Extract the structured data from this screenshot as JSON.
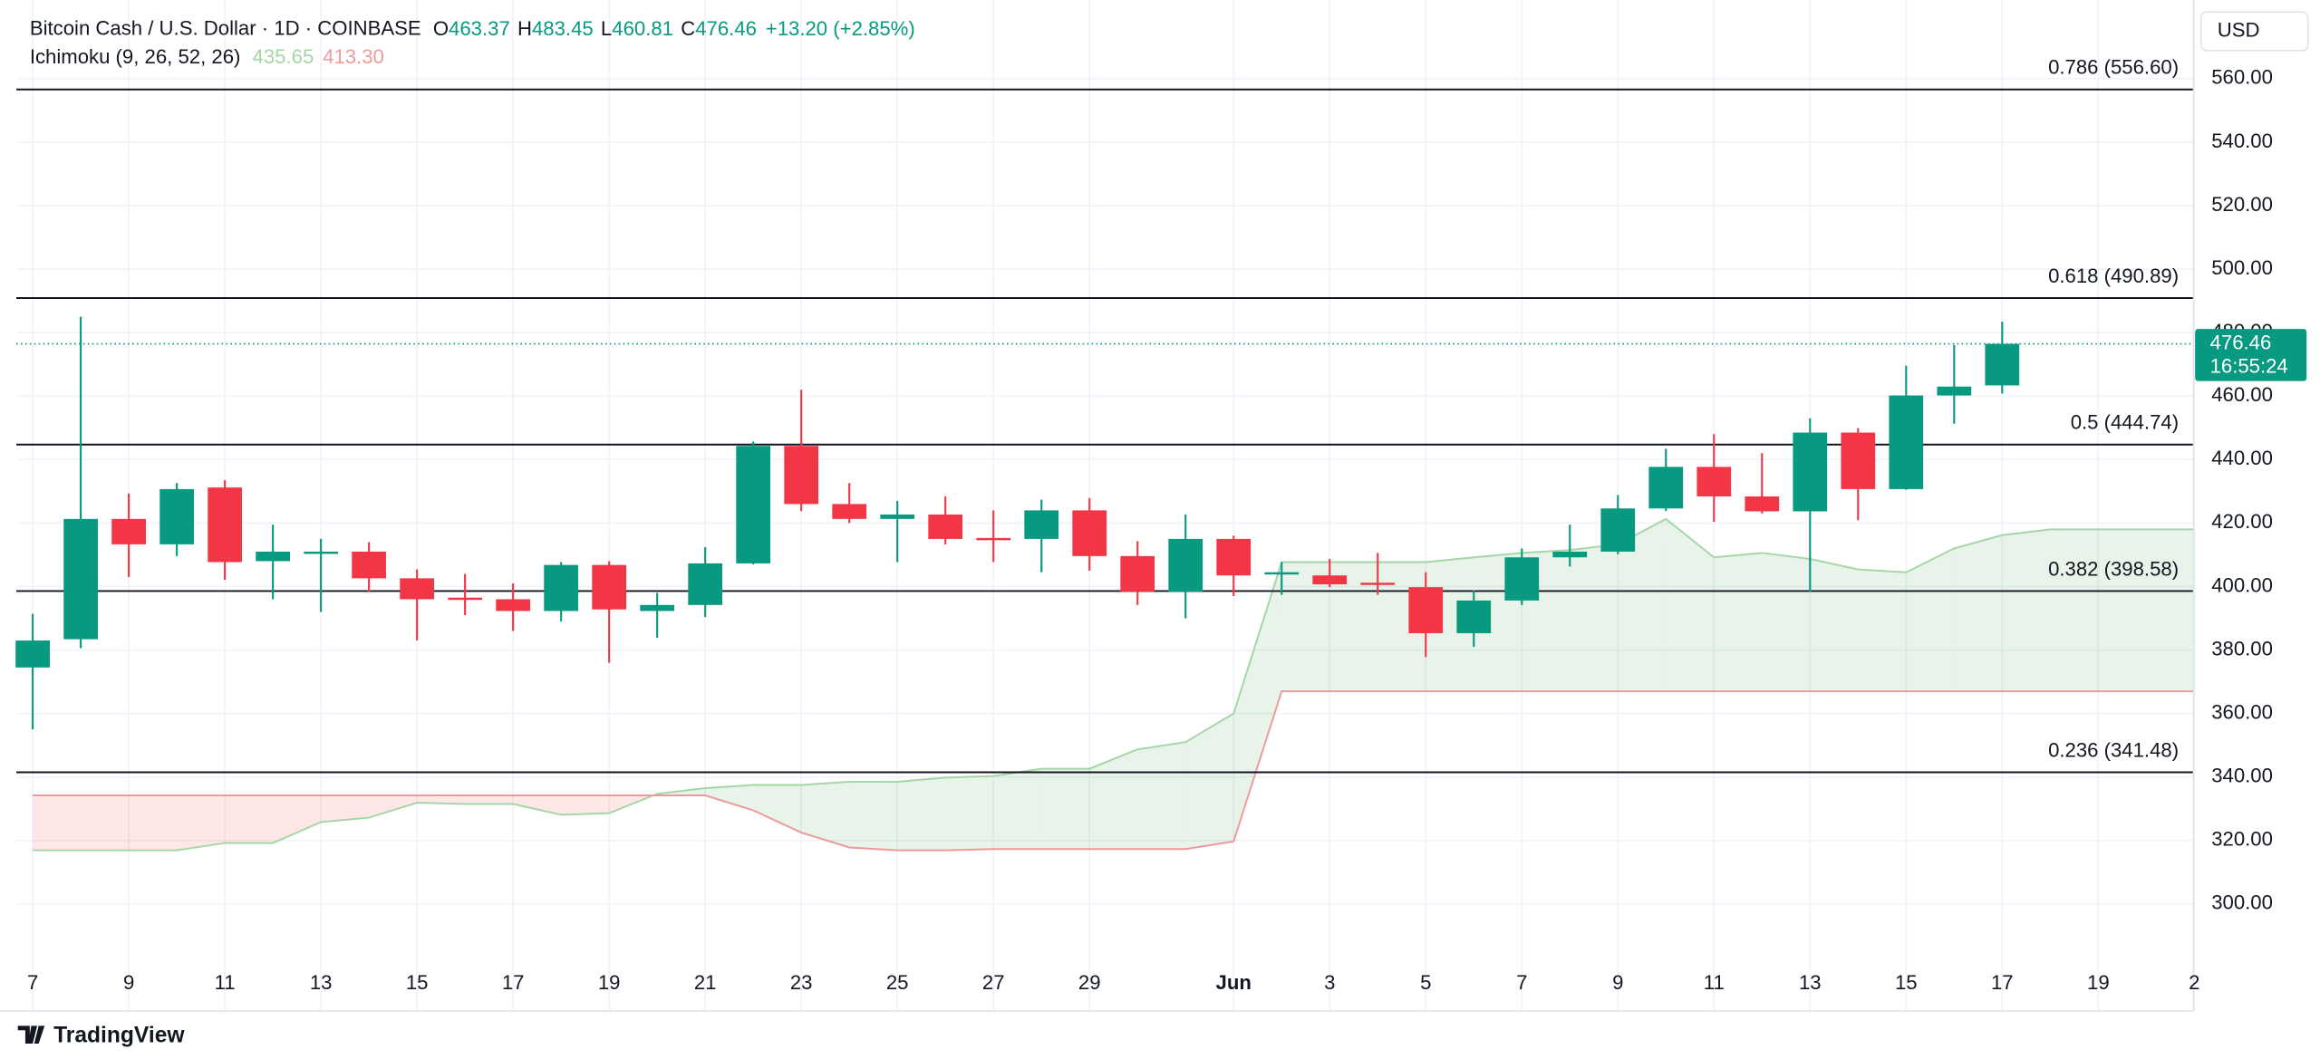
{
  "header": {
    "symbol": "Bitcoin Cash / U.S. Dollar · 1D · COINBASE",
    "ohlc_letters": [
      "O",
      "H",
      "L",
      "C"
    ],
    "change": "+13.20 (+2.85%)",
    "indicator": "Ichimoku (9, 26, 52, 26)",
    "indicator_values": [
      "435.65",
      "413.30"
    ]
  },
  "currency": "USD",
  "countdown": "16:55:24",
  "brand": "TradingView",
  "chart_data": {
    "type": "candlestick",
    "categories": [
      "7",
      null,
      "9",
      null,
      "11",
      null,
      "13",
      null,
      "15",
      null,
      "17",
      null,
      "19",
      null,
      "21",
      null,
      "23",
      null,
      "25",
      null,
      "27",
      null,
      "29",
      null,
      null,
      "Jun",
      null,
      "3",
      null,
      "5",
      null,
      "7",
      null,
      "9",
      null,
      "11",
      null,
      "13",
      null,
      "15",
      null,
      "17",
      null,
      "19",
      null,
      "2"
    ],
    "open": [
      374.5,
      383.4,
      421.3,
      413.3,
      431.2,
      408,
      410.8,
      411,
      402.6,
      396.5,
      396,
      392.3,
      406.8,
      392.3,
      394.2,
      407.3,
      444.3,
      426,
      421.3,
      422.7,
      415.3,
      415,
      424,
      409.6,
      398.4,
      415,
      404,
      403.5,
      401.2,
      399.8,
      385.3,
      395.6,
      409.2,
      411,
      424.6,
      437.7,
      428.4,
      423.7,
      448.5,
      430.7,
      460.2,
      463.37,
      null,
      null,
      null,
      null
    ],
    "high": [
      391.4,
      485,
      429.3,
      432.6,
      433.5,
      419.5,
      415,
      414,
      405.4,
      404,
      401,
      407.7,
      408,
      398,
      412.4,
      445.7,
      462,
      432.6,
      427,
      428.4,
      424,
      427.4,
      427.9,
      414.3,
      422.7,
      416,
      407.7,
      408.7,
      410.6,
      404.5,
      398.8,
      412,
      419.5,
      428.8,
      443.4,
      448,
      442,
      453,
      449.9,
      469.6,
      476.1,
      483.45,
      null,
      null,
      null,
      null
    ],
    "low": [
      355,
      380.6,
      403,
      409.6,
      402.1,
      396,
      392,
      398.4,
      383,
      391,
      386,
      389,
      376,
      383.9,
      390.4,
      407,
      423.7,
      420,
      407.7,
      413.3,
      407.7,
      404.5,
      405,
      394.2,
      390,
      397,
      397.4,
      399.8,
      397.4,
      377.8,
      381,
      394.2,
      406.3,
      410.2,
      423.8,
      420.4,
      423,
      398.4,
      420.9,
      430.5,
      451.3,
      460.81,
      null,
      null,
      null,
      null
    ],
    "close": [
      383,
      421.3,
      413.3,
      430.7,
      407.7,
      411,
      411,
      402.6,
      396,
      396,
      392.3,
      406.8,
      392.8,
      394.2,
      407.3,
      444.3,
      426,
      421.3,
      422.7,
      415,
      415,
      424,
      409.6,
      398.4,
      415,
      403.5,
      404.5,
      400.7,
      400.7,
      385.3,
      395.6,
      409.2,
      411,
      424.6,
      437.7,
      428.4,
      423.7,
      448.5,
      430.7,
      460.2,
      463,
      476.46,
      null,
      null,
      null,
      null
    ],
    "up_color": "#089981",
    "down_color": "#f23645",
    "ichimoku": [
      {
        "name": "Leading Span A",
        "color": "#a5d6a7",
        "values": [
          316.9,
          316.9,
          316.9,
          316.9,
          319.2,
          319.2,
          325.8,
          327.2,
          331.9,
          331.5,
          331.5,
          328.1,
          328.6,
          334.7,
          336.5,
          337.5,
          337.5,
          338.5,
          338.5,
          339.8,
          340.3,
          342.6,
          342.6,
          348.7,
          351,
          360,
          407.7,
          407.7,
          407.7,
          407.7,
          409.2,
          410.6,
          411.5,
          413.3,
          421.3,
          409.2,
          410.6,
          408.7,
          405.4,
          404.5,
          412,
          416.2,
          418,
          418,
          418,
          418
        ]
      },
      {
        "name": "Leading Span B",
        "color": "#ef9a9a",
        "values": [
          334.2,
          334.2,
          334.2,
          334.2,
          334.2,
          334.2,
          334.2,
          334.2,
          334.2,
          334.2,
          334.2,
          334.2,
          334.2,
          334.2,
          334.2,
          329.5,
          322.5,
          317.8,
          316.9,
          316.9,
          317.3,
          317.3,
          317.3,
          317.3,
          317.3,
          319.7,
          367,
          367,
          367,
          367,
          367,
          367,
          367,
          367,
          367,
          367,
          367,
          367,
          367,
          367,
          367,
          367,
          367,
          367,
          367,
          367
        ]
      }
    ],
    "cloud_colors": {
      "up": "rgba(67,160,71,0.12)",
      "down": "rgba(244,67,54,0.12)"
    },
    "fib_levels": [
      {
        "value": 556.6,
        "label": "0.786 (556.60)"
      },
      {
        "value": 490.89,
        "label": "0.618 (490.89)"
      },
      {
        "value": 444.74,
        "label": "0.5 (444.74)"
      },
      {
        "value": 398.58,
        "label": "0.382 (398.58)"
      },
      {
        "value": 341.48,
        "label": "0.236 (341.48)"
      }
    ],
    "ylim": [
      282.7,
      580.1
    ],
    "yticks": [
      {
        "value": 300,
        "label": "300.00"
      },
      {
        "value": 320,
        "label": "320.00"
      },
      {
        "value": 340,
        "label": "340.00"
      },
      {
        "value": 360,
        "label": "360.00"
      },
      {
        "value": 380,
        "label": "380.00"
      },
      {
        "value": 400,
        "label": "400.00"
      },
      {
        "value": 420,
        "label": "420.00"
      },
      {
        "value": 440,
        "label": "440.00"
      },
      {
        "value": 460,
        "label": "460.00"
      },
      {
        "value": 480,
        "label": "480.00"
      },
      {
        "value": 500,
        "label": "500.00"
      },
      {
        "value": 520,
        "label": "520.00"
      },
      {
        "value": 540,
        "label": "540.00"
      },
      {
        "value": 560,
        "label": "560.00"
      }
    ],
    "grid": true
  }
}
